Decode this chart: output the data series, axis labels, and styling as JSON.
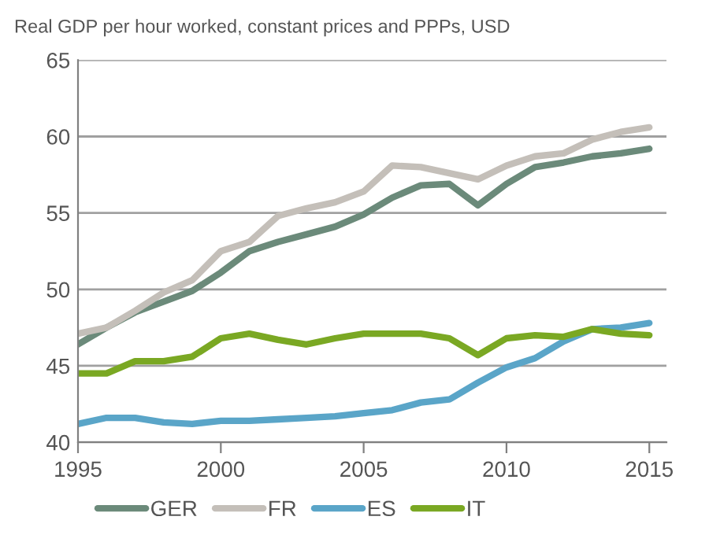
{
  "chart_data": {
    "type": "line",
    "title": "Real GDP per hour worked, constant prices and PPPs, USD",
    "x": [
      1995,
      1996,
      1997,
      1998,
      1999,
      2000,
      2001,
      2002,
      2003,
      2004,
      2005,
      2006,
      2007,
      2008,
      2009,
      2010,
      2011,
      2012,
      2013,
      2014,
      2015
    ],
    "series": [
      {
        "name": "GER",
        "color": "#6b8a7a",
        "values": [
          46.4,
          47.5,
          48.5,
          49.2,
          49.9,
          51.1,
          52.5,
          53.1,
          53.6,
          54.1,
          54.9,
          56.0,
          56.8,
          56.9,
          55.5,
          56.9,
          58.0,
          58.3,
          58.7,
          58.9,
          59.2
        ]
      },
      {
        "name": "FR",
        "color": "#c4bfb9",
        "values": [
          47.1,
          47.5,
          48.6,
          49.8,
          50.6,
          52.5,
          53.1,
          54.8,
          55.3,
          55.7,
          56.4,
          58.1,
          58.0,
          57.6,
          57.2,
          58.1,
          58.7,
          58.9,
          59.8,
          60.3,
          60.6
        ]
      },
      {
        "name": "ES",
        "color": "#5aa5c8",
        "values": [
          41.2,
          41.6,
          41.6,
          41.3,
          41.2,
          41.4,
          41.4,
          41.5,
          41.6,
          41.7,
          41.9,
          42.1,
          42.6,
          42.8,
          43.9,
          44.9,
          45.5,
          46.6,
          47.4,
          47.5,
          47.8
        ]
      },
      {
        "name": "IT",
        "color": "#7aa823",
        "values": [
          44.5,
          44.5,
          45.3,
          45.3,
          45.6,
          46.8,
          47.1,
          46.7,
          46.4,
          46.8,
          47.1,
          47.1,
          47.1,
          46.8,
          45.7,
          46.8,
          47.0,
          46.9,
          47.4,
          47.1,
          47.0
        ]
      }
    ],
    "xlim": [
      1995,
      2015.6
    ],
    "xticks": [
      1995,
      2000,
      2005,
      2010,
      2015
    ],
    "ylim": [
      40,
      65
    ],
    "yticks": [
      40,
      45,
      50,
      55,
      60,
      65
    ],
    "grid": "y",
    "legend": "bottom",
    "line_style": "solid",
    "marker": "none"
  }
}
